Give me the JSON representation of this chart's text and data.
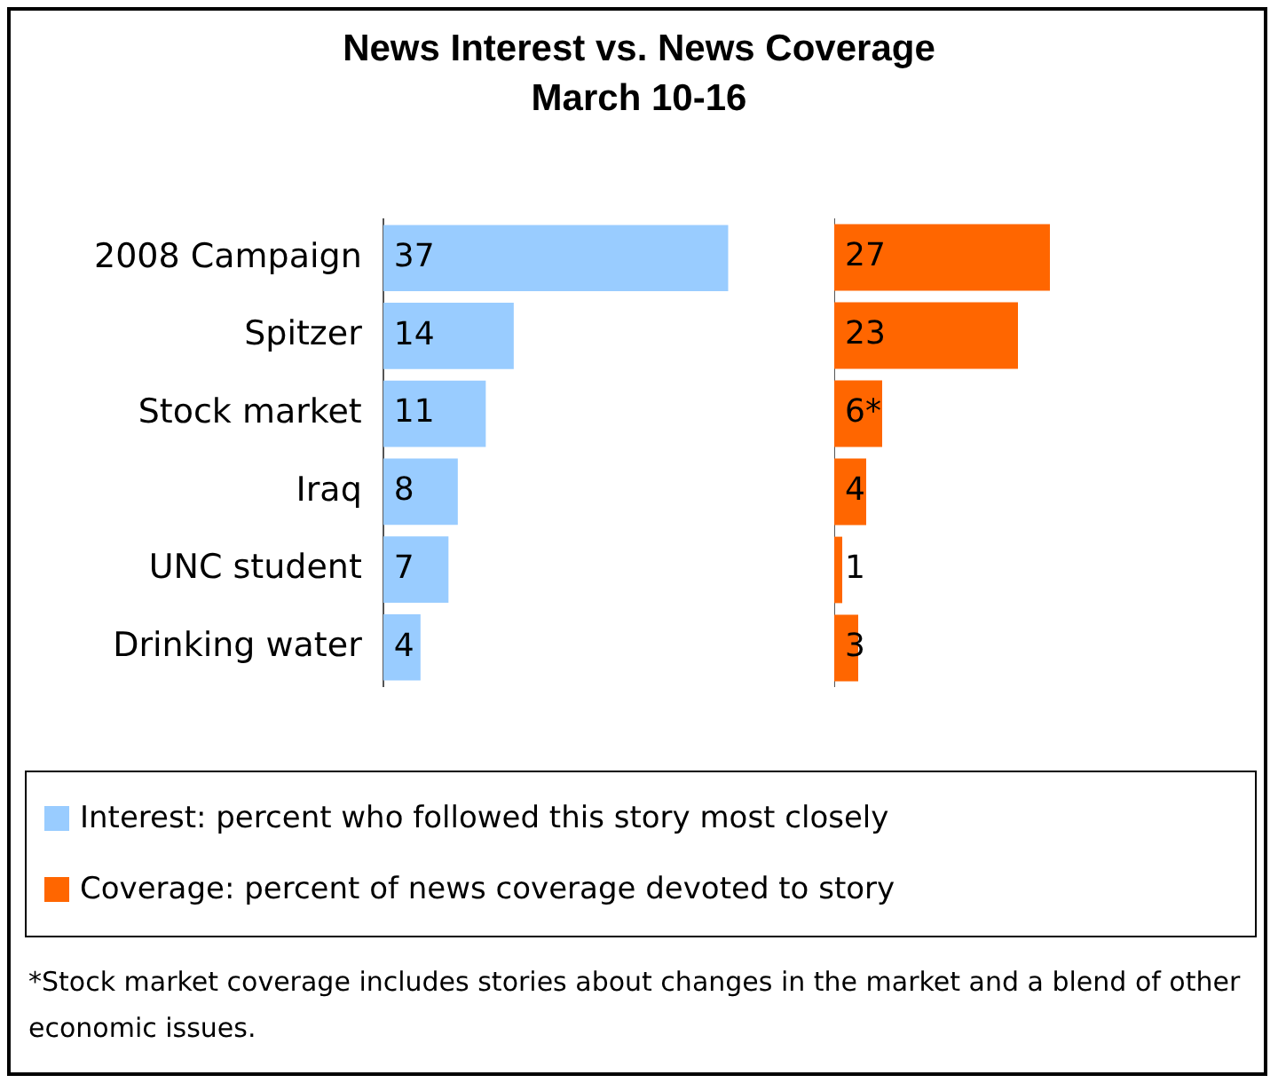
{
  "chart_data": [
    {
      "type": "bar",
      "orientation": "horizontal",
      "title": "News Interest vs. News Coverage",
      "subtitle": "March 10-16",
      "categories": [
        "2008 Campaign",
        "Spitzer",
        "Stock market",
        "Iraq",
        "UNC student",
        "Drinking water"
      ],
      "series": [
        {
          "name": "Interest: percent who followed this story most closely",
          "color": "#99ccff",
          "values": [
            37,
            14,
            11,
            8,
            7,
            4
          ]
        }
      ],
      "data_labels": true,
      "legend": "bottom",
      "tick_labels": "y",
      "grid": false
    },
    {
      "type": "bar",
      "orientation": "horizontal",
      "categories": [
        null,
        null,
        null,
        null,
        null,
        null
      ],
      "series": [
        {
          "name": "Coverage: percent of news coverage devoted to story",
          "color": "#ff6600",
          "values": [
            27,
            23,
            6,
            4,
            1,
            3
          ],
          "value_labels": [
            "27",
            "23",
            "6*",
            "4",
            "1",
            "3"
          ]
        }
      ],
      "legend": "bottom",
      "tick_labels": false,
      "grid": false,
      "annotations": [
        "*Stock market coverage includes stories about changes in the market and a blend of other economic issues."
      ]
    }
  ]
}
